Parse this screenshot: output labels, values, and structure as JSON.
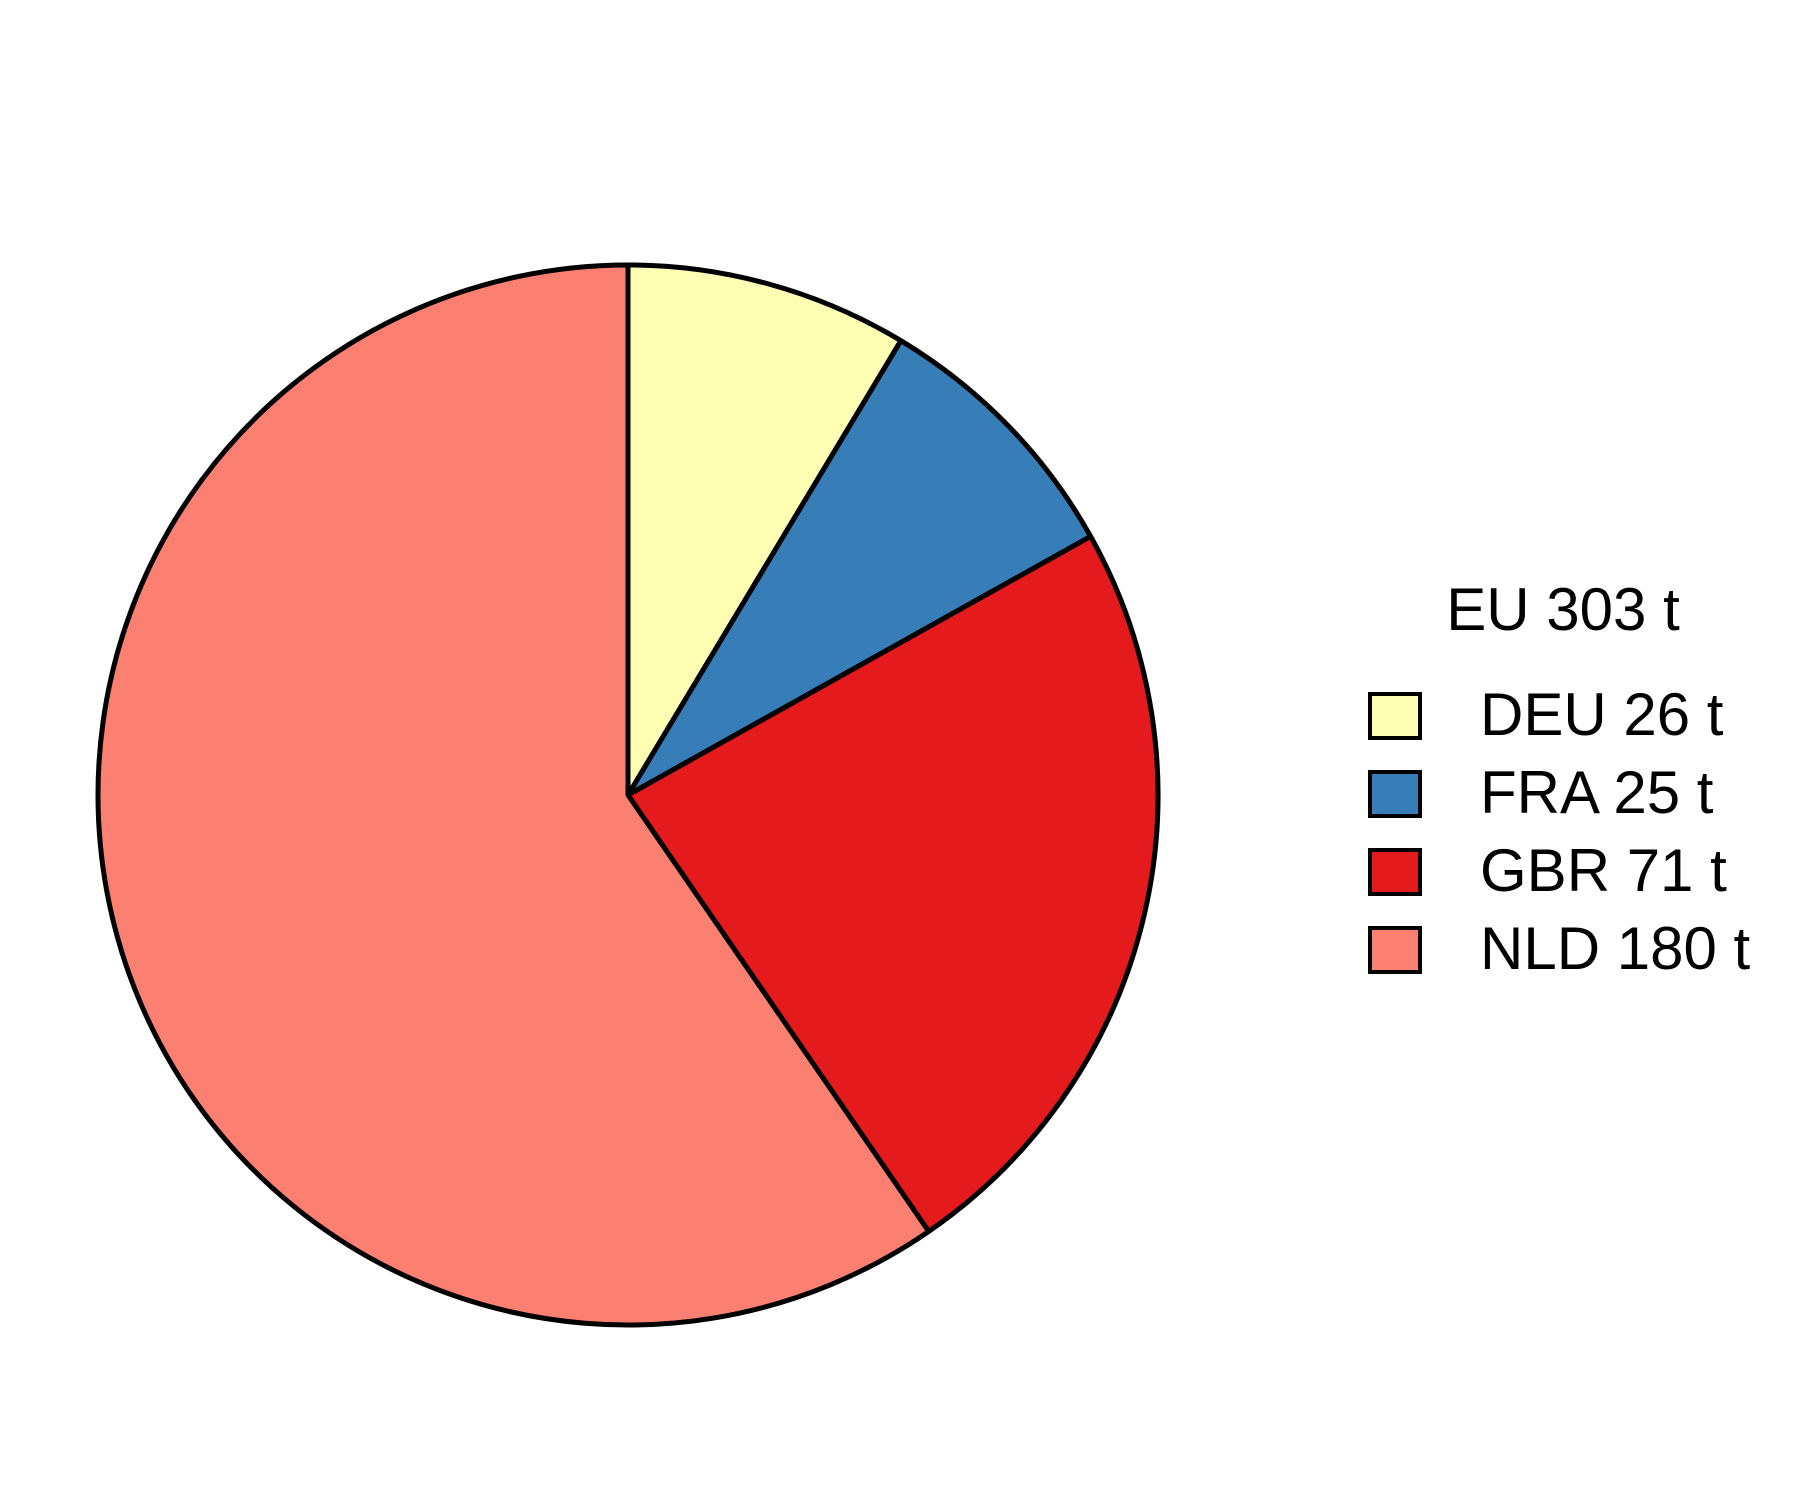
{
  "chart_data": {
    "type": "pie",
    "legend_title": "EU 303 t",
    "legend_position": "right",
    "start_angle": "12 o'clock",
    "direction": "clockwise",
    "slices": [
      {
        "category": "DEU",
        "label": "DEU 26 t",
        "value": 26,
        "color": "#FFFFB3"
      },
      {
        "category": "FRA",
        "label": "FRA 25 t",
        "value": 25,
        "color": "#377EB8"
      },
      {
        "category": "GBR",
        "label": "GBR 71 t",
        "value": 71,
        "color": "#E41A1C"
      },
      {
        "category": "NLD",
        "label": "NLD 180 t",
        "value": 180,
        "color": "#FB8072"
      }
    ]
  }
}
